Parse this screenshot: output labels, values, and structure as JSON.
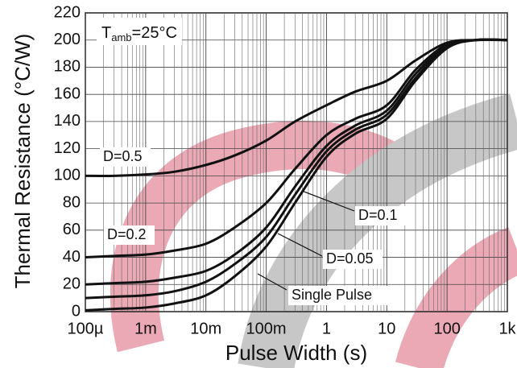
{
  "chart_data": {
    "type": "line",
    "x_label": "Pulse Width (s)",
    "y_label": "Thermal Resistance (°C/W)",
    "annotation": {
      "text": "T",
      "subscript": "amb",
      "suffix": "=25°C"
    },
    "x_log": true,
    "grid": true,
    "x": [
      0.0001,
      0.0003,
      0.001,
      0.003,
      0.01,
      0.03,
      0.1,
      0.3,
      1,
      3,
      10,
      30,
      100,
      300,
      1000
    ],
    "series": [
      {
        "name": "D=0.5",
        "color": "#111111",
        "values": [
          100,
          100,
          101,
          103,
          108,
          115,
          126,
          140,
          152,
          162,
          170,
          185,
          198,
          200,
          200
        ]
      },
      {
        "name": "D=0.2",
        "color": "#111111",
        "values": [
          40,
          41,
          42,
          45,
          50,
          62,
          80,
          105,
          130,
          142,
          152,
          178,
          197,
          200,
          200
        ]
      },
      {
        "name": "D=0.1",
        "color": "#111111",
        "values": [
          20,
          21,
          22,
          25,
          30,
          42,
          62,
          92,
          122,
          137,
          148,
          175,
          196,
          200,
          200
        ]
      },
      {
        "name": "D=0.05",
        "color": "#111111",
        "values": [
          10,
          11,
          12,
          15,
          22,
          35,
          55,
          86,
          118,
          134,
          145,
          172,
          195,
          200,
          200
        ]
      },
      {
        "name": "Single Pulse",
        "color": "#111111",
        "values": [
          1,
          2,
          3,
          6,
          12,
          26,
          48,
          80,
          114,
          131,
          142,
          170,
          194,
          200,
          200
        ]
      }
    ],
    "xlim": [
      0.0001,
      1000
    ],
    "ylim": [
      0,
      220
    ],
    "xticks": [
      {
        "value": 0.0001,
        "label": "100µ"
      },
      {
        "value": 0.001,
        "label": "1m"
      },
      {
        "value": 0.01,
        "label": "10m"
      },
      {
        "value": 0.1,
        "label": "100m"
      },
      1,
      10,
      100,
      {
        "value": 1000,
        "label": "1k"
      }
    ],
    "yticks": [
      0,
      20,
      40,
      60,
      80,
      100,
      120,
      140,
      160,
      180,
      200,
      220
    ]
  }
}
